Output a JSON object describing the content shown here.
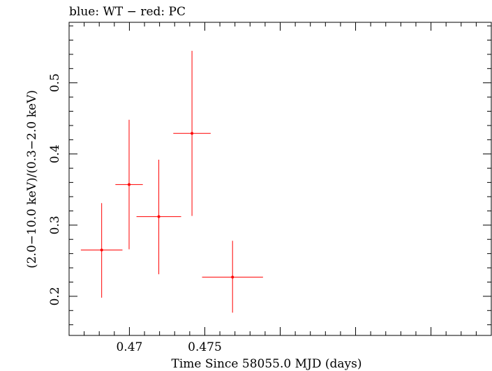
{
  "chart_data": {
    "type": "scatter",
    "title": "blue: WT − red: PC",
    "xlabel": "Time Since 58055.0 MJD (days)",
    "ylabel": "(2.0−10.0 keV)/(0.3−2.0 keV)",
    "xlim": [
      0.466,
      0.494
    ],
    "ylim": [
      0.145,
      0.585
    ],
    "x_ticks_major": [
      0.47,
      0.475
    ],
    "x_tick_labels": [
      "0.47",
      "0.475"
    ],
    "y_ticks_major": [
      0.2,
      0.3,
      0.4,
      0.5
    ],
    "y_tick_labels": [
      "0.2",
      "0.3",
      "0.4",
      "0.5"
    ],
    "grid": false,
    "series": [
      {
        "color": "#ff0000",
        "points": [
          {
            "x": 0.46816,
            "xerr": 0.00138,
            "y": 0.265,
            "yerr_low": 0.067,
            "yerr_high": 0.066
          },
          {
            "x": 0.46998,
            "xerr": 0.00091,
            "y": 0.357,
            "yerr_low": 0.091,
            "yerr_high": 0.091
          },
          {
            "x": 0.47195,
            "xerr": 0.00148,
            "y": 0.312,
            "yerr_low": 0.081,
            "yerr_high": 0.08
          },
          {
            "x": 0.47415,
            "xerr": 0.00124,
            "y": 0.429,
            "yerr_low": 0.116,
            "yerr_high": 0.116
          },
          {
            "x": 0.47684,
            "xerr": 0.00202,
            "y": 0.227,
            "yerr_low": 0.05,
            "yerr_high": 0.051
          }
        ]
      }
    ]
  }
}
